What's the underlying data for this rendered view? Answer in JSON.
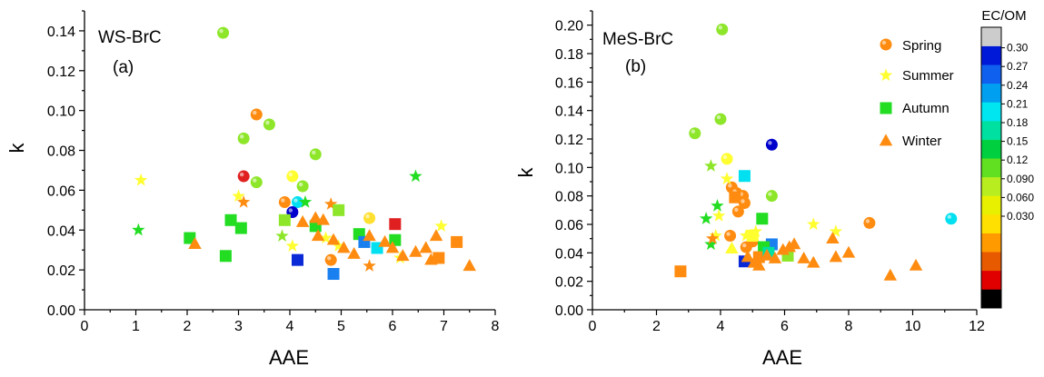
{
  "colorbar": {
    "title": "EC/OM",
    "ticks": [
      "0.30",
      "0.27",
      "0.24",
      "0.21",
      "0.18",
      "0.15",
      "0.12",
      "0.090",
      "0.060",
      "0.030"
    ],
    "colors": [
      "#000000",
      "#e00000",
      "#e85a00",
      "#ff9a00",
      "#ffe000",
      "#e8f000",
      "#b8ee20",
      "#60e020",
      "#00d040",
      "#00e0a0",
      "#00e6f0",
      "#009ff0",
      "#1060f0",
      "#0018d8",
      "#cccccc"
    ],
    "over_color": "#cccccc",
    "under_color": "#000000"
  },
  "legend": {
    "items": [
      {
        "label": "Spring",
        "marker": "circle"
      },
      {
        "label": "Summer",
        "marker": "star"
      },
      {
        "label": "Autumn",
        "marker": "square"
      },
      {
        "label": "Winter",
        "marker": "triangle"
      }
    ]
  },
  "chart_data": [
    {
      "type": "scatter",
      "title": "WS-BrC",
      "panel": "(a)",
      "xlabel": "AAE",
      "ylabel": "k",
      "xlim": [
        0,
        8
      ],
      "ylim": [
        0,
        0.15
      ],
      "xticks": [
        "0",
        "1",
        "2",
        "3",
        "4",
        "5",
        "6",
        "7",
        "8"
      ],
      "yticks": [
        "0.00",
        "0.02",
        "0.04",
        "0.06",
        "0.08",
        "0.10",
        "0.12",
        "0.14"
      ],
      "grid": false,
      "points": [
        {
          "x": 2.7,
          "y": 0.139,
          "m": "circle",
          "c": "#8ee62a"
        },
        {
          "x": 3.35,
          "y": 0.098,
          "m": "circle",
          "c": "#ff8c10"
        },
        {
          "x": 3.1,
          "y": 0.086,
          "m": "circle",
          "c": "#8ee62a"
        },
        {
          "x": 3.6,
          "y": 0.093,
          "m": "circle",
          "c": "#8ee62a"
        },
        {
          "x": 3.1,
          "y": 0.067,
          "m": "circle",
          "c": "#e02020"
        },
        {
          "x": 3.35,
          "y": 0.064,
          "m": "circle",
          "c": "#8ee62a"
        },
        {
          "x": 4.05,
          "y": 0.067,
          "m": "circle",
          "c": "#ffff30"
        },
        {
          "x": 4.5,
          "y": 0.078,
          "m": "circle",
          "c": "#8ee62a"
        },
        {
          "x": 4.25,
          "y": 0.062,
          "m": "circle",
          "c": "#8ee62a"
        },
        {
          "x": 3.9,
          "y": 0.054,
          "m": "circle",
          "c": "#ff8c10"
        },
        {
          "x": 4.15,
          "y": 0.054,
          "m": "circle",
          "c": "#00e0f0"
        },
        {
          "x": 4.05,
          "y": 0.049,
          "m": "circle",
          "c": "#0000cc"
        },
        {
          "x": 5.55,
          "y": 0.046,
          "m": "circle",
          "c": "#ffe030"
        },
        {
          "x": 4.8,
          "y": 0.025,
          "m": "circle",
          "c": "#ff8c10"
        },
        {
          "x": 1.1,
          "y": 0.065,
          "m": "star",
          "c": "#ffff30"
        },
        {
          "x": 1.05,
          "y": 0.04,
          "m": "star",
          "c": "#22dd22"
        },
        {
          "x": 3.0,
          "y": 0.057,
          "m": "star",
          "c": "#ffff30"
        },
        {
          "x": 3.1,
          "y": 0.054,
          "m": "star",
          "c": "#ff8c10"
        },
        {
          "x": 4.3,
          "y": 0.054,
          "m": "star",
          "c": "#22dd22"
        },
        {
          "x": 4.8,
          "y": 0.053,
          "m": "star",
          "c": "#ff8c10"
        },
        {
          "x": 3.85,
          "y": 0.037,
          "m": "star",
          "c": "#8ee62a"
        },
        {
          "x": 4.05,
          "y": 0.032,
          "m": "star",
          "c": "#ffff30"
        },
        {
          "x": 4.7,
          "y": 0.036,
          "m": "star",
          "c": "#ffff30"
        },
        {
          "x": 4.95,
          "y": 0.032,
          "m": "star",
          "c": "#ffff30"
        },
        {
          "x": 5.55,
          "y": 0.022,
          "m": "star",
          "c": "#ff8c10"
        },
        {
          "x": 6.45,
          "y": 0.067,
          "m": "star",
          "c": "#22dd22"
        },
        {
          "x": 6.95,
          "y": 0.042,
          "m": "star",
          "c": "#ffff30"
        },
        {
          "x": 6.15,
          "y": 0.026,
          "m": "star",
          "c": "#ffff30"
        },
        {
          "x": 2.05,
          "y": 0.036,
          "m": "square",
          "c": "#22dd22"
        },
        {
          "x": 2.75,
          "y": 0.027,
          "m": "square",
          "c": "#22dd22"
        },
        {
          "x": 2.85,
          "y": 0.045,
          "m": "square",
          "c": "#22dd22"
        },
        {
          "x": 3.05,
          "y": 0.041,
          "m": "square",
          "c": "#22dd22"
        },
        {
          "x": 3.9,
          "y": 0.045,
          "m": "square",
          "c": "#8ee62a"
        },
        {
          "x": 4.15,
          "y": 0.025,
          "m": "square",
          "c": "#0a2ad8"
        },
        {
          "x": 4.5,
          "y": 0.042,
          "m": "square",
          "c": "#22dd22"
        },
        {
          "x": 4.95,
          "y": 0.05,
          "m": "square",
          "c": "#8ee62a"
        },
        {
          "x": 4.85,
          "y": 0.018,
          "m": "square",
          "c": "#1a80f0"
        },
        {
          "x": 5.35,
          "y": 0.038,
          "m": "square",
          "c": "#22dd22"
        },
        {
          "x": 5.45,
          "y": 0.034,
          "m": "square",
          "c": "#1a80f0"
        },
        {
          "x": 5.7,
          "y": 0.031,
          "m": "square",
          "c": "#00e0f0"
        },
        {
          "x": 6.05,
          "y": 0.043,
          "m": "square",
          "c": "#e02020"
        },
        {
          "x": 6.05,
          "y": 0.035,
          "m": "square",
          "c": "#22dd22"
        },
        {
          "x": 7.25,
          "y": 0.034,
          "m": "square",
          "c": "#ff8c10"
        },
        {
          "x": 6.9,
          "y": 0.026,
          "m": "square",
          "c": "#ff8c10"
        },
        {
          "x": 2.15,
          "y": 0.033,
          "m": "triangle",
          "c": "#ff8c10"
        },
        {
          "x": 4.5,
          "y": 0.046,
          "m": "triangle",
          "c": "#ff8c10"
        },
        {
          "x": 4.65,
          "y": 0.045,
          "m": "triangle",
          "c": "#ff8c10"
        },
        {
          "x": 4.25,
          "y": 0.044,
          "m": "triangle",
          "c": "#ff8c10"
        },
        {
          "x": 4.55,
          "y": 0.037,
          "m": "triangle",
          "c": "#ff8c10"
        },
        {
          "x": 4.85,
          "y": 0.035,
          "m": "triangle",
          "c": "#ff8c10"
        },
        {
          "x": 5.05,
          "y": 0.031,
          "m": "triangle",
          "c": "#ff8c10"
        },
        {
          "x": 5.25,
          "y": 0.028,
          "m": "triangle",
          "c": "#ff8c10"
        },
        {
          "x": 5.55,
          "y": 0.037,
          "m": "triangle",
          "c": "#ff8c10"
        },
        {
          "x": 5.85,
          "y": 0.034,
          "m": "triangle",
          "c": "#ff8c10"
        },
        {
          "x": 6.0,
          "y": 0.031,
          "m": "triangle",
          "c": "#ff8c10"
        },
        {
          "x": 6.2,
          "y": 0.027,
          "m": "triangle",
          "c": "#ff8c10"
        },
        {
          "x": 6.45,
          "y": 0.029,
          "m": "triangle",
          "c": "#ff8c10"
        },
        {
          "x": 6.65,
          "y": 0.031,
          "m": "triangle",
          "c": "#ff8c10"
        },
        {
          "x": 6.75,
          "y": 0.025,
          "m": "triangle",
          "c": "#ff8c10"
        },
        {
          "x": 6.85,
          "y": 0.037,
          "m": "triangle",
          "c": "#ff8c10"
        },
        {
          "x": 7.5,
          "y": 0.022,
          "m": "triangle",
          "c": "#ff8c10"
        }
      ]
    },
    {
      "type": "scatter",
      "title": "MeS-BrC",
      "panel": "(b)",
      "xlabel": "AAE",
      "ylabel": "k",
      "xlim": [
        0,
        12
      ],
      "ylim": [
        0,
        0.21
      ],
      "xticks": [
        "0",
        "2",
        "4",
        "6",
        "8",
        "10",
        "12"
      ],
      "yticks": [
        "0.00",
        "0.02",
        "0.04",
        "0.06",
        "0.08",
        "0.10",
        "0.12",
        "0.14",
        "0.16",
        "0.18",
        "0.20"
      ],
      "grid": false,
      "points": [
        {
          "x": 4.05,
          "y": 0.197,
          "m": "circle",
          "c": "#8ee62a"
        },
        {
          "x": 3.2,
          "y": 0.124,
          "m": "circle",
          "c": "#8ee62a"
        },
        {
          "x": 4.0,
          "y": 0.134,
          "m": "circle",
          "c": "#8ee62a"
        },
        {
          "x": 5.6,
          "y": 0.116,
          "m": "circle",
          "c": "#0000cc"
        },
        {
          "x": 4.2,
          "y": 0.106,
          "m": "circle",
          "c": "#ffff30"
        },
        {
          "x": 4.35,
          "y": 0.086,
          "m": "circle",
          "c": "#ff8c10"
        },
        {
          "x": 4.5,
          "y": 0.082,
          "m": "circle",
          "c": "#ff8c10"
        },
        {
          "x": 4.7,
          "y": 0.08,
          "m": "circle",
          "c": "#ff8c10"
        },
        {
          "x": 4.75,
          "y": 0.075,
          "m": "circle",
          "c": "#ff8c10"
        },
        {
          "x": 4.55,
          "y": 0.069,
          "m": "circle",
          "c": "#ff8c10"
        },
        {
          "x": 5.6,
          "y": 0.08,
          "m": "circle",
          "c": "#8ee62a"
        },
        {
          "x": 4.3,
          "y": 0.052,
          "m": "circle",
          "c": "#ff8c10"
        },
        {
          "x": 5.0,
          "y": 0.048,
          "m": "circle",
          "c": "#ff8c10"
        },
        {
          "x": 4.8,
          "y": 0.044,
          "m": "circle",
          "c": "#ff8c10"
        },
        {
          "x": 5.4,
          "y": 0.04,
          "m": "circle",
          "c": "#ff8c10"
        },
        {
          "x": 8.65,
          "y": 0.061,
          "m": "circle",
          "c": "#ff8c10"
        },
        {
          "x": 11.2,
          "y": 0.064,
          "m": "circle",
          "c": "#00e0f0"
        },
        {
          "x": 3.7,
          "y": 0.101,
          "m": "star",
          "c": "#8ee62a"
        },
        {
          "x": 4.2,
          "y": 0.092,
          "m": "star",
          "c": "#ffff30"
        },
        {
          "x": 3.9,
          "y": 0.073,
          "m": "star",
          "c": "#22dd22"
        },
        {
          "x": 3.55,
          "y": 0.064,
          "m": "star",
          "c": "#22dd22"
        },
        {
          "x": 3.95,
          "y": 0.066,
          "m": "star",
          "c": "#ffff30"
        },
        {
          "x": 3.7,
          "y": 0.046,
          "m": "star",
          "c": "#22dd22"
        },
        {
          "x": 3.85,
          "y": 0.052,
          "m": "star",
          "c": "#ffff30"
        },
        {
          "x": 3.75,
          "y": 0.05,
          "m": "star",
          "c": "#ff8c10"
        },
        {
          "x": 4.8,
          "y": 0.052,
          "m": "star",
          "c": "#ffff30"
        },
        {
          "x": 5.1,
          "y": 0.055,
          "m": "star",
          "c": "#ffff30"
        },
        {
          "x": 6.9,
          "y": 0.06,
          "m": "star",
          "c": "#ffff30"
        },
        {
          "x": 7.6,
          "y": 0.055,
          "m": "star",
          "c": "#ffff30"
        },
        {
          "x": 4.75,
          "y": 0.094,
          "m": "square",
          "c": "#00e0f0"
        },
        {
          "x": 4.45,
          "y": 0.079,
          "m": "square",
          "c": "#ff8c10"
        },
        {
          "x": 5.3,
          "y": 0.064,
          "m": "square",
          "c": "#22dd22"
        },
        {
          "x": 5.0,
          "y": 0.052,
          "m": "square",
          "c": "#ffff30"
        },
        {
          "x": 5.6,
          "y": 0.046,
          "m": "square",
          "c": "#1a80f0"
        },
        {
          "x": 5.35,
          "y": 0.044,
          "m": "square",
          "c": "#22dd22"
        },
        {
          "x": 4.75,
          "y": 0.034,
          "m": "square",
          "c": "#0a2ad8"
        },
        {
          "x": 5.2,
          "y": 0.037,
          "m": "square",
          "c": "#ff8c10"
        },
        {
          "x": 5.5,
          "y": 0.04,
          "m": "square",
          "c": "#00e0a0"
        },
        {
          "x": 6.1,
          "y": 0.038,
          "m": "square",
          "c": "#8ee62a"
        },
        {
          "x": 2.75,
          "y": 0.027,
          "m": "square",
          "c": "#ff8c10"
        },
        {
          "x": 4.35,
          "y": 0.043,
          "m": "triangle",
          "c": "#ffff30"
        },
        {
          "x": 4.85,
          "y": 0.037,
          "m": "triangle",
          "c": "#ff8c10"
        },
        {
          "x": 5.05,
          "y": 0.033,
          "m": "triangle",
          "c": "#ff8c10"
        },
        {
          "x": 5.2,
          "y": 0.031,
          "m": "triangle",
          "c": "#ff8c10"
        },
        {
          "x": 5.45,
          "y": 0.038,
          "m": "triangle",
          "c": "#ff8c10"
        },
        {
          "x": 5.7,
          "y": 0.036,
          "m": "triangle",
          "c": "#ff8c10"
        },
        {
          "x": 5.95,
          "y": 0.042,
          "m": "triangle",
          "c": "#ff8c10"
        },
        {
          "x": 6.15,
          "y": 0.044,
          "m": "triangle",
          "c": "#ff8c10"
        },
        {
          "x": 6.3,
          "y": 0.046,
          "m": "triangle",
          "c": "#ff8c10"
        },
        {
          "x": 6.6,
          "y": 0.036,
          "m": "triangle",
          "c": "#ff8c10"
        },
        {
          "x": 6.9,
          "y": 0.033,
          "m": "triangle",
          "c": "#ff8c10"
        },
        {
          "x": 7.5,
          "y": 0.05,
          "m": "triangle",
          "c": "#ff8c10"
        },
        {
          "x": 7.6,
          "y": 0.037,
          "m": "triangle",
          "c": "#ff8c10"
        },
        {
          "x": 8.0,
          "y": 0.04,
          "m": "triangle",
          "c": "#ff8c10"
        },
        {
          "x": 9.3,
          "y": 0.024,
          "m": "triangle",
          "c": "#ff8c10"
        },
        {
          "x": 10.1,
          "y": 0.031,
          "m": "triangle",
          "c": "#ff8c10"
        }
      ]
    }
  ]
}
